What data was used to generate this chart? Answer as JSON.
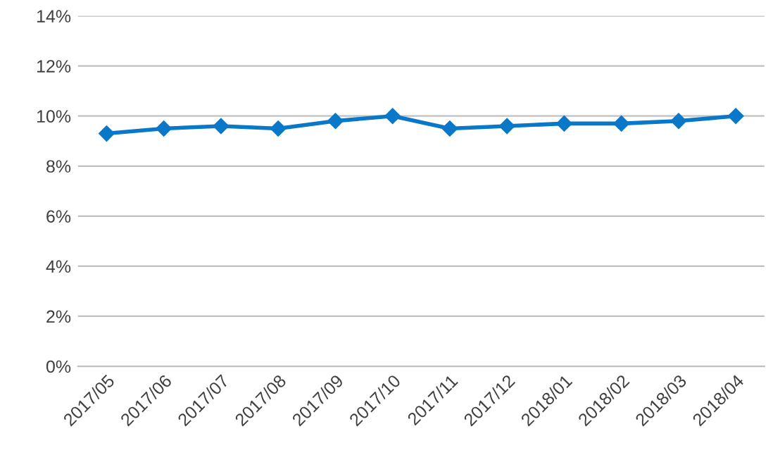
{
  "chart_data": {
    "type": "line",
    "categories": [
      "2017/05",
      "2017/06",
      "2017/07",
      "2017/08",
      "2017/09",
      "2017/10",
      "2017/11",
      "2017/12",
      "2018/01",
      "2018/02",
      "2018/03",
      "2018/04"
    ],
    "series": [
      {
        "color": "#0a78c8",
        "values": [
          9.3,
          9.5,
          9.6,
          9.5,
          9.8,
          10.0,
          9.5,
          9.6,
          9.7,
          9.7,
          9.8,
          10.0
        ]
      }
    ],
    "ylim": [
      0,
      14
    ],
    "yticks": [
      {
        "value": 0,
        "label": "0%"
      },
      {
        "value": 2,
        "label": "2%"
      },
      {
        "value": 4,
        "label": "4%"
      },
      {
        "value": 6,
        "label": "6%"
      },
      {
        "value": 8,
        "label": "8%"
      },
      {
        "value": 10,
        "label": "10%"
      },
      {
        "value": 12,
        "label": "12%"
      },
      {
        "value": 14,
        "label": "14%"
      }
    ],
    "grid": "y",
    "marker": "diamond",
    "line_style": "solid"
  }
}
